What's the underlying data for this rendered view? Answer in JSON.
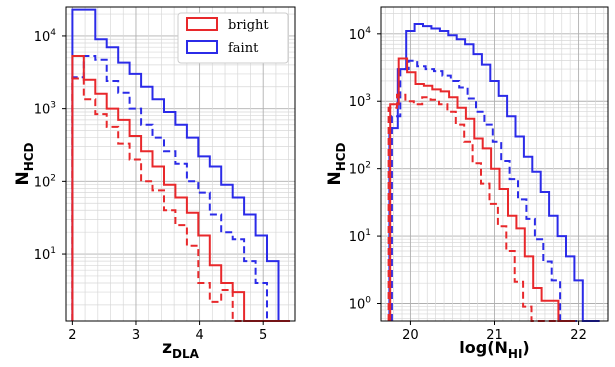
{
  "chart_data": [
    {
      "type": "line",
      "drawstyle": "steps",
      "xlabel": "z",
      "xlabel_sub": "DLA",
      "ylabel": "N",
      "ylabel_sub": "HCD",
      "xlim": [
        1.9,
        5.5
      ],
      "ylim_log": [
        1.2,
        25000
      ],
      "yscale": "log",
      "grid": true,
      "xticks": [
        2,
        3,
        4,
        5
      ],
      "yticks": [
        {
          "v": 10,
          "label": "10",
          "exp": "1"
        },
        {
          "v": 100,
          "label": "10",
          "exp": "2"
        },
        {
          "v": 1000,
          "label": "10",
          "exp": "3"
        },
        {
          "v": 10000,
          "label": "10",
          "exp": "4"
        }
      ],
      "legend": {
        "placement": "top-right",
        "entries": [
          {
            "label": "bright",
            "color": "#e8282b"
          },
          {
            "label": "faint",
            "color": "#2b2be8"
          }
        ]
      },
      "edges": [
        2.0,
        2.18,
        2.36,
        2.54,
        2.72,
        2.9,
        3.08,
        3.26,
        3.44,
        3.62,
        3.8,
        3.98,
        4.16,
        4.34,
        4.52,
        4.7,
        4.88,
        5.06,
        5.24,
        5.42
      ],
      "series": [
        {
          "name": "faint",
          "color": "#2b2be8",
          "dash": false,
          "values": [
            23000,
            23000,
            9000,
            7000,
            4300,
            3000,
            2000,
            1350,
            900,
            600,
            400,
            220,
            160,
            90,
            60,
            35,
            18,
            8,
            1.2
          ]
        },
        {
          "name": "faint",
          "color": "#2b2be8",
          "dash": true,
          "values": [
            2700,
            5300,
            4700,
            2400,
            1650,
            1000,
            600,
            400,
            260,
            175,
            100,
            70,
            35,
            20,
            16,
            8,
            4,
            1.2,
            1.2
          ]
        },
        {
          "name": "bright",
          "color": "#e8282b",
          "dash": false,
          "values": [
            5300,
            2500,
            1600,
            1000,
            700,
            420,
            260,
            160,
            90,
            60,
            37,
            18,
            7,
            4,
            3,
            1.2,
            1.2,
            1.2,
            1.2
          ]
        },
        {
          "name": "bright",
          "color": "#e8282b",
          "dash": true,
          "values": [
            2600,
            1350,
            840,
            560,
            330,
            200,
            100,
            75,
            40,
            25,
            13,
            4,
            2.2,
            3.2,
            1.2,
            1.2,
            1.2,
            1.2,
            1.2
          ]
        }
      ]
    },
    {
      "type": "line",
      "drawstyle": "steps",
      "xlabel": "log(N",
      "xlabel_sub": "HI",
      "xlabel_end": ")",
      "ylabel": "N",
      "ylabel_sub": "HCD",
      "xlim": [
        19.65,
        22.35
      ],
      "ylim_log": [
        0.55,
        25000
      ],
      "yscale": "log",
      "grid": true,
      "xticks": [
        20,
        21,
        22
      ],
      "yticks": [
        {
          "v": 1,
          "label": "10",
          "exp": "0"
        },
        {
          "v": 10,
          "label": "10",
          "exp": "1"
        },
        {
          "v": 100,
          "label": "10",
          "exp": "2"
        },
        {
          "v": 1000,
          "label": "10",
          "exp": "3"
        },
        {
          "v": 10000,
          "label": "10",
          "exp": "4"
        }
      ],
      "series": [
        {
          "name": "faint",
          "color": "#2b2be8",
          "dash": false,
          "edges": [
            19.75,
            19.85,
            19.95,
            20.05,
            20.15,
            20.25,
            20.35,
            20.45,
            20.55,
            20.65,
            20.75,
            20.85,
            20.95,
            21.05,
            21.15,
            21.25,
            21.35,
            21.45,
            21.55,
            21.65,
            21.75,
            21.85,
            21.95,
            22.05,
            22.15,
            22.25
          ],
          "values": [
            400,
            3000,
            11000,
            14000,
            13000,
            12000,
            11000,
            9500,
            8300,
            7000,
            5000,
            3500,
            2000,
            1200,
            600,
            300,
            150,
            90,
            45,
            20,
            10,
            5,
            2.2,
            0.55,
            0.55
          ]
        },
        {
          "name": "faint",
          "color": "#2b2be8",
          "dash": true,
          "edges": [
            19.78,
            19.88,
            19.98,
            20.08,
            20.18,
            20.28,
            20.38,
            20.48,
            20.58,
            20.68,
            20.78,
            20.88,
            20.98,
            21.08,
            21.18,
            21.28,
            21.38,
            21.48,
            21.58,
            21.68,
            21.78,
            21.88,
            21.98
          ],
          "values": [
            600,
            3000,
            4000,
            3300,
            3000,
            2800,
            2400,
            2000,
            1600,
            1100,
            700,
            450,
            250,
            130,
            70,
            35,
            18,
            9,
            4.2,
            2.2,
            0.55,
            0.55
          ]
        },
        {
          "name": "bright",
          "color": "#e8282b",
          "dash": false,
          "edges": [
            19.76,
            19.86,
            19.96,
            20.06,
            20.16,
            20.26,
            20.36,
            20.46,
            20.56,
            20.66,
            20.76,
            20.86,
            20.96,
            21.06,
            21.16,
            21.26,
            21.36,
            21.46,
            21.56,
            21.66,
            21.76,
            21.86,
            21.96
          ],
          "values": [
            900,
            4300,
            2700,
            1800,
            1700,
            1500,
            1400,
            1150,
            800,
            550,
            280,
            200,
            100,
            50,
            20,
            13,
            5,
            1.7,
            1.1,
            1.1,
            0.55,
            0.55
          ]
        },
        {
          "name": "bright",
          "color": "#e8282b",
          "dash": true,
          "edges": [
            19.74,
            19.84,
            19.94,
            20.04,
            20.14,
            20.24,
            20.34,
            20.44,
            20.54,
            20.64,
            20.74,
            20.84,
            20.94,
            21.04,
            21.14,
            21.24,
            21.34,
            21.44,
            21.54,
            21.64,
            21.74,
            21.84,
            21.94
          ],
          "values": [
            800,
            1250,
            1000,
            900,
            1150,
            1050,
            900,
            700,
            450,
            250,
            120,
            60,
            30,
            14,
            6,
            2.1,
            0.9,
            0.55,
            0.55,
            0.55,
            0.55,
            0.55
          ]
        }
      ]
    }
  ]
}
